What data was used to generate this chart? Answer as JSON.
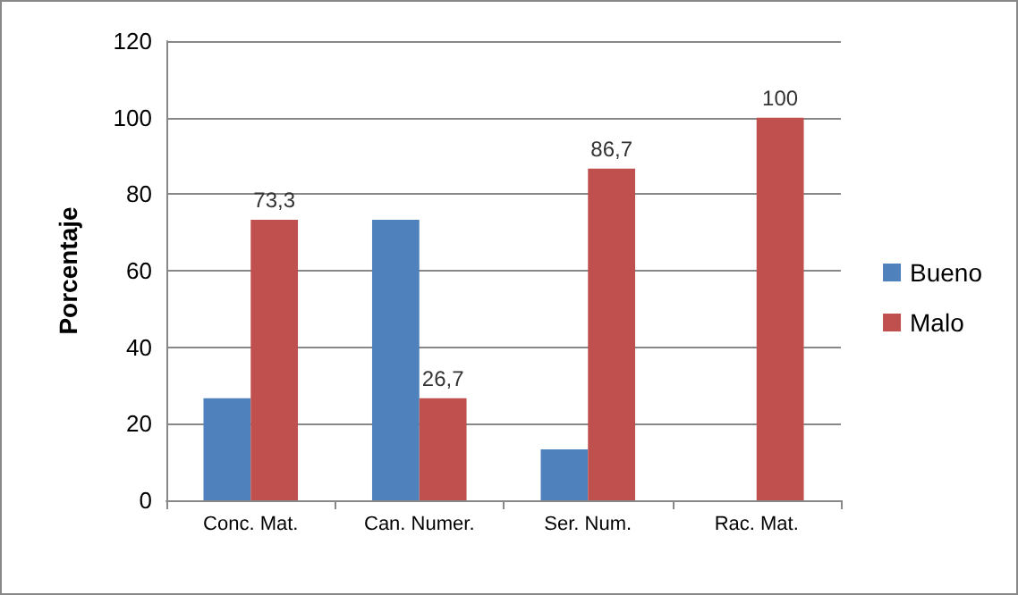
{
  "chart_data": {
    "type": "bar",
    "ylabel": "Porcentaje",
    "categories": [
      "Conc. Mat.",
      "Can. Numer.",
      "Ser. Num.",
      "Rac. Mat."
    ],
    "series": [
      {
        "name": "Bueno",
        "color": "#4f81bd",
        "values": [
          26.7,
          73.3,
          13.3,
          0
        ]
      },
      {
        "name": "Malo",
        "color": "#c0504d",
        "values": [
          73.3,
          26.7,
          86.7,
          100
        ],
        "value_labels": [
          "73,3",
          "26,7",
          "86,7",
          "100"
        ]
      }
    ],
    "ylim": [
      0,
      120
    ],
    "yticks": [
      0,
      20,
      40,
      60,
      80,
      100,
      120
    ],
    "grid": "y",
    "legend": "right"
  }
}
